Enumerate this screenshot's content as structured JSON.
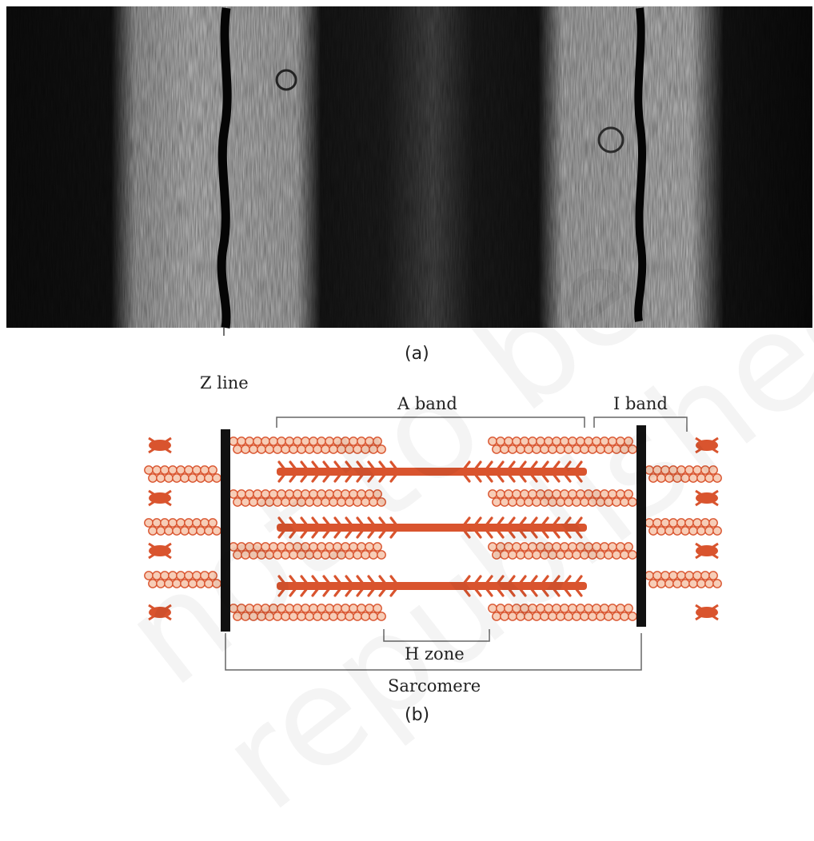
{
  "panel_a": {
    "caption": "(a)"
  },
  "panel_b": {
    "caption": "(b)",
    "labels": {
      "z_line": "Z line",
      "a_band": "A band",
      "i_band": "I band",
      "h_zone": "H zone",
      "sarcomere": "Sarcomere"
    }
  },
  "watermark": "not to be republished",
  "colors": {
    "filament": "#d9542e",
    "actin_fill": "#f7cdb7",
    "actin_stroke": "#d9542e",
    "z_disc": "#111111",
    "bracket": "#666666"
  }
}
